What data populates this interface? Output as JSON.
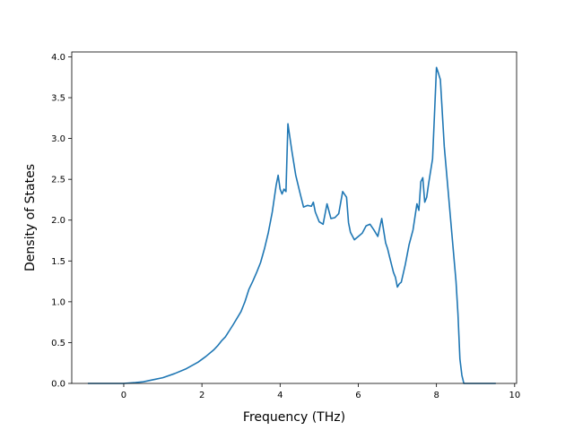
{
  "chart_data": {
    "type": "line",
    "title": "",
    "xlabel": "Frequency (THz)",
    "ylabel": "Density of States",
    "xlim": [
      -1.33,
      10.05
    ],
    "ylim": [
      0,
      4.06
    ],
    "xticks": [
      0,
      2,
      4,
      6,
      8,
      10
    ],
    "xtick_labels": [
      "0",
      "2",
      "4",
      "6",
      "8",
      "10"
    ],
    "yticks": [
      0.0,
      0.5,
      1.0,
      1.5,
      2.0,
      2.5,
      3.0,
      3.5,
      4.0
    ],
    "ytick_labels": [
      "0.0",
      "0.5",
      "1.0",
      "1.5",
      "2.0",
      "2.5",
      "3.0",
      "3.5",
      "4.0"
    ],
    "grid": false,
    "legend": "none",
    "series": [
      {
        "color": "#1f77b4",
        "x": [
          -0.9,
          -0.5,
          0.0,
          0.3,
          0.5,
          0.8,
          1.0,
          1.3,
          1.6,
          1.9,
          2.1,
          2.3,
          2.4,
          2.5,
          2.6,
          2.8,
          3.0,
          3.1,
          3.2,
          3.3,
          3.4,
          3.5,
          3.6,
          3.7,
          3.8,
          3.9,
          3.95,
          4.0,
          4.05,
          4.1,
          4.15,
          4.2,
          4.3,
          4.4,
          4.5,
          4.6,
          4.7,
          4.8,
          4.85,
          4.9,
          5.0,
          5.1,
          5.2,
          5.3,
          5.4,
          5.5,
          5.6,
          5.7,
          5.75,
          5.8,
          5.9,
          6.0,
          6.1,
          6.2,
          6.3,
          6.4,
          6.5,
          6.6,
          6.7,
          6.75,
          6.8,
          6.9,
          6.95,
          7.0,
          7.05,
          7.1,
          7.2,
          7.3,
          7.4,
          7.5,
          7.55,
          7.6,
          7.65,
          7.7,
          7.75,
          7.8,
          7.9,
          7.95,
          8.0,
          8.05,
          8.1,
          8.2,
          8.3,
          8.4,
          8.5,
          8.55,
          8.6,
          8.65,
          8.7,
          9.0,
          9.5
        ],
        "y": [
          0.0,
          0.0,
          0.0,
          0.01,
          0.02,
          0.05,
          0.07,
          0.12,
          0.18,
          0.26,
          0.33,
          0.41,
          0.46,
          0.52,
          0.57,
          0.72,
          0.88,
          1.0,
          1.15,
          1.25,
          1.36,
          1.48,
          1.65,
          1.85,
          2.1,
          2.43,
          2.55,
          2.38,
          2.32,
          2.38,
          2.35,
          3.18,
          2.85,
          2.55,
          2.35,
          2.16,
          2.18,
          2.17,
          2.22,
          2.1,
          1.98,
          1.95,
          2.2,
          2.02,
          2.03,
          2.08,
          2.35,
          2.28,
          1.97,
          1.85,
          1.76,
          1.8,
          1.84,
          1.93,
          1.95,
          1.88,
          1.8,
          2.02,
          1.72,
          1.65,
          1.55,
          1.36,
          1.3,
          1.18,
          1.22,
          1.24,
          1.45,
          1.7,
          1.88,
          2.2,
          2.12,
          2.47,
          2.52,
          2.22,
          2.28,
          2.45,
          2.75,
          3.3,
          3.87,
          3.8,
          3.72,
          2.9,
          2.35,
          1.8,
          1.25,
          0.85,
          0.3,
          0.1,
          0.0,
          0.0,
          0.0
        ]
      }
    ]
  }
}
